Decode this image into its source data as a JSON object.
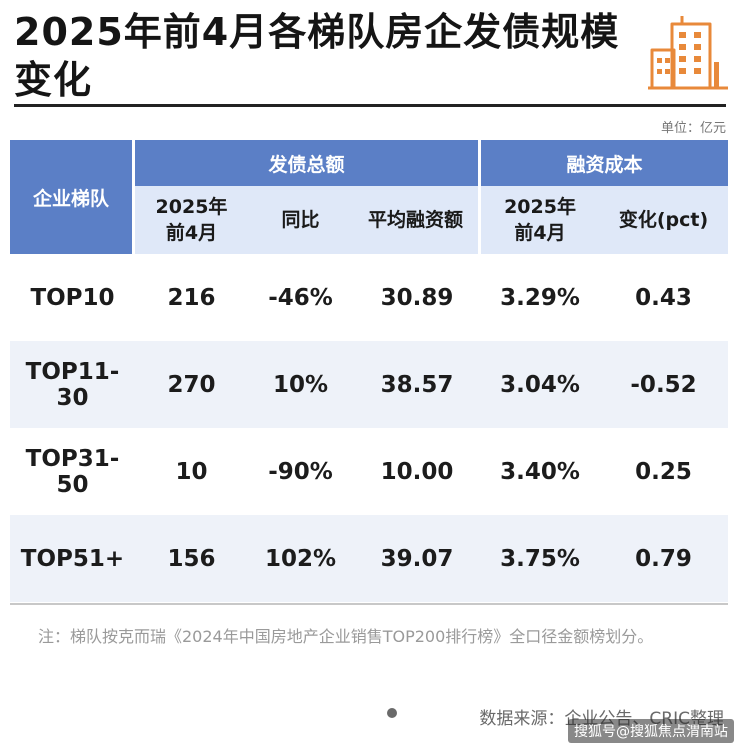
{
  "header": {
    "title": "2025年前4月各梯队房企发债规模变化",
    "unit": "单位：亿元"
  },
  "table": {
    "corner": "企业梯队",
    "group1": "发债总额",
    "group2": "融资成本",
    "sub": [
      "2025年前4月",
      "同比",
      "平均融资额",
      "2025年前4月",
      "变化(pct)"
    ],
    "rows": [
      [
        "TOP10",
        "216",
        "-46%",
        "30.89",
        "3.29%",
        "0.43"
      ],
      [
        "TOP11-30",
        "270",
        "10%",
        "38.57",
        "3.04%",
        "-0.52"
      ],
      [
        "TOP31-50",
        "10",
        "-90%",
        "10.00",
        "3.40%",
        "0.25"
      ],
      [
        "TOP51+",
        "156",
        "102%",
        "39.07",
        "3.75%",
        "0.79"
      ]
    ]
  },
  "footer": {
    "note": "注：梯队按克而瑞《2024年中国房地产企业销售TOP200排行榜》全口径金额榜划分。",
    "source": "数据来源：企业公告、CRIC整理",
    "watermark": "搜狐号@搜狐焦点渭南站"
  },
  "colors": {
    "header_blue": "#5b7fc6",
    "sub_header": "#dfe8f8",
    "stripe": "#eef2f9",
    "icon_orange": "#e8893a"
  }
}
